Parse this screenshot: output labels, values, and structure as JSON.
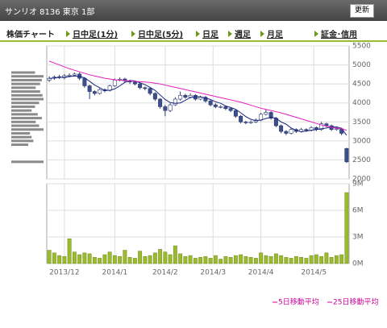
{
  "header": {
    "title": "サンリオ 8136 東京 1部",
    "button": "更新"
  },
  "tabs": [
    "株価チャート",
    "日中足(1分)",
    "日中足(5分)",
    "日足",
    "週足",
    "月足",
    "証金･信用"
  ],
  "chart_data": [
    {
      "type": "candlestick",
      "ylim": [
        2000,
        5500
      ],
      "yticks": [
        2000,
        2500,
        3000,
        3500,
        4000,
        4500,
        5000,
        5500
      ],
      "xlim": [
        0,
        60
      ],
      "grid": true,
      "up_color": "#ffffff",
      "down_color": "#3a4f8c",
      "edge_color": "#2a3a70",
      "open": [
        4600,
        4650,
        4690,
        4660,
        4720,
        4730,
        4760,
        4650,
        4450,
        4300,
        4250,
        4350,
        4330,
        4450,
        4600,
        4630,
        4580,
        4550,
        4500,
        4400,
        4380,
        4250,
        4100,
        3900,
        3800,
        3950,
        4100,
        4200,
        4150,
        4200,
        4100,
        4150,
        4050,
        3950,
        3900,
        3900,
        3850,
        3800,
        3650,
        3500,
        3480,
        3500,
        3550,
        3700,
        3750,
        3600,
        3400,
        3250,
        3200,
        3300,
        3250,
        3300,
        3280,
        3350,
        3300,
        3450,
        3400,
        3300,
        3320,
        2800
      ],
      "high": [
        4700,
        4720,
        4740,
        4760,
        4780,
        4800,
        4800,
        4680,
        4480,
        4330,
        4380,
        4380,
        4480,
        4640,
        4670,
        4660,
        4610,
        4580,
        4540,
        4430,
        4410,
        4280,
        4130,
        3950,
        3990,
        4150,
        4300,
        4240,
        4250,
        4230,
        4190,
        4180,
        4080,
        3990,
        3940,
        3930,
        3880,
        3830,
        3680,
        3530,
        3540,
        3590,
        3740,
        3820,
        3780,
        3630,
        3430,
        3280,
        3340,
        3330,
        3340,
        3330,
        3390,
        3380,
        3500,
        3480,
        3430,
        3360,
        3350,
        2820
      ],
      "low": [
        4550,
        4610,
        4630,
        4620,
        4680,
        4700,
        4600,
        4400,
        4100,
        4200,
        4220,
        4280,
        4300,
        4420,
        4570,
        4540,
        4500,
        4460,
        4360,
        4330,
        4200,
        4050,
        3850,
        3650,
        3760,
        3920,
        4060,
        4110,
        4120,
        4060,
        4070,
        4010,
        3910,
        3860,
        3860,
        3810,
        3760,
        3610,
        3460,
        3440,
        3450,
        3470,
        3520,
        3670,
        3560,
        3360,
        3200,
        3150,
        3170,
        3210,
        3220,
        3240,
        3250,
        3260,
        3270,
        3360,
        3260,
        3270,
        3150,
        2420
      ],
      "close": [
        4650,
        4680,
        4670,
        4720,
        4730,
        4760,
        4650,
        4450,
        4300,
        4250,
        4350,
        4320,
        4450,
        4600,
        4620,
        4580,
        4550,
        4500,
        4400,
        4380,
        4250,
        4100,
        3900,
        3800,
        3950,
        4100,
        4200,
        4150,
        4200,
        4100,
        4150,
        4050,
        3950,
        3900,
        3900,
        3850,
        3800,
        3650,
        3500,
        3480,
        3500,
        3550,
        3700,
        3750,
        3600,
        3400,
        3250,
        3200,
        3300,
        3250,
        3300,
        3280,
        3350,
        3300,
        3450,
        3400,
        3300,
        3320,
        3200,
        2450
      ],
      "series": [
        {
          "name": "5日移動平均",
          "color": "#1a237e",
          "values": [
            4640,
            4660,
            4670,
            4680,
            4690,
            4710,
            4700,
            4660,
            4570,
            4470,
            4400,
            4330,
            4330,
            4370,
            4450,
            4540,
            4590,
            4580,
            4530,
            4480,
            4410,
            4330,
            4210,
            4090,
            4010,
            3990,
            4000,
            4070,
            4140,
            4160,
            4160,
            4130,
            4090,
            4030,
            3990,
            3920,
            3880,
            3830,
            3740,
            3640,
            3570,
            3530,
            3550,
            3590,
            3620,
            3600,
            3500,
            3440,
            3340,
            3280,
            3240,
            3260,
            3280,
            3300,
            3320,
            3340,
            3370,
            3370,
            3330,
            3150
          ]
        },
        {
          "name": "25日移動平均",
          "color": "#e020c0",
          "values": [
            5100,
            5050,
            5000,
            4950,
            4900,
            4860,
            4820,
            4780,
            4740,
            4710,
            4680,
            4650,
            4630,
            4610,
            4600,
            4590,
            4580,
            4570,
            4560,
            4550,
            4540,
            4520,
            4500,
            4470,
            4440,
            4410,
            4380,
            4350,
            4320,
            4290,
            4260,
            4230,
            4200,
            4170,
            4140,
            4110,
            4080,
            4050,
            4020,
            3980,
            3940,
            3900,
            3860,
            3830,
            3800,
            3770,
            3740,
            3700,
            3660,
            3620,
            3580,
            3540,
            3500,
            3460,
            3420,
            3390,
            3360,
            3340,
            3320,
            3280
          ]
        }
      ],
      "volume_profile": {
        "color": "#8a8a8a",
        "prices": [
          4800,
          4700,
          4600,
          4500,
          4400,
          4300,
          4200,
          4100,
          4000,
          3900,
          3800,
          3700,
          3600,
          3500,
          3400,
          3300,
          3200,
          3100,
          3000,
          2900,
          2450
        ],
        "values": [
          70,
          95,
          90,
          85,
          72,
          85,
          92,
          95,
          82,
          70,
          60,
          78,
          90,
          72,
          82,
          95,
          55,
          60,
          65,
          50,
          95
        ]
      }
    },
    {
      "type": "bar",
      "color": "#9bbb2e",
      "values": [
        1.5,
        1.2,
        0.9,
        0.8,
        2.8,
        1.3,
        1.0,
        1.2,
        1.1,
        0.7,
        0.6,
        1.0,
        1.3,
        0.9,
        0.8,
        1.5,
        0.7,
        0.6,
        1.4,
        0.8,
        0.9,
        1.2,
        1.6,
        1.3,
        1.0,
        2.0,
        1.1,
        0.8,
        0.9,
        0.6,
        0.7,
        0.8,
        0.6,
        0.9,
        0.5,
        0.8,
        0.7,
        0.9,
        1.0,
        0.8,
        0.7,
        0.6,
        1.2,
        0.9,
        0.8,
        1.1,
        0.9,
        0.7,
        0.6,
        0.8,
        0.7,
        0.6,
        0.9,
        1.0,
        0.8,
        1.2,
        0.7,
        0.9,
        1.0,
        8.0
      ],
      "ylim": [
        0,
        9
      ],
      "yticks": [
        {
          "value": 0,
          "label": "0M"
        },
        {
          "value": 3,
          "label": "3M"
        },
        {
          "value": 6,
          "label": "6M"
        },
        {
          "value": 9,
          "label": "9M"
        }
      ],
      "xlim": [
        0,
        60
      ],
      "xticks": [
        {
          "value": 3.5,
          "label": "2013/12"
        },
        {
          "value": 13.5,
          "label": "2014/1"
        },
        {
          "value": 23.5,
          "label": "2014/2"
        },
        {
          "value": 33,
          "label": "2014/3"
        },
        {
          "value": 42.5,
          "label": "2014/4"
        },
        {
          "value": 53,
          "label": "2014/5"
        }
      ],
      "grid": true
    }
  ]
}
